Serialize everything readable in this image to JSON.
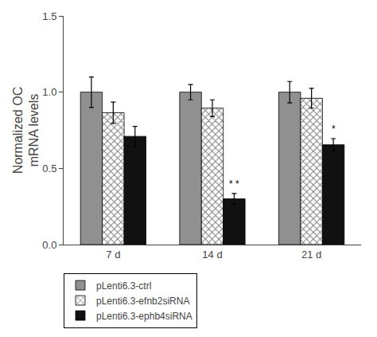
{
  "chart_data": {
    "type": "bar",
    "categories": [
      "7 d",
      "14 d",
      "21 d"
    ],
    "series": [
      {
        "name": "pLenti6.3-ctrl",
        "color": "#909090",
        "values": [
          1.0,
          1.0,
          1.0
        ],
        "errors": [
          0.1,
          0.05,
          0.07
        ]
      },
      {
        "name": "pLenti6.3-efnb2siRNA",
        "color": "#ffffff",
        "marker": "x",
        "values": [
          0.865,
          0.895,
          0.96
        ],
        "errors": [
          0.07,
          0.055,
          0.065
        ]
      },
      {
        "name": "pLenti6.3-ephb4siRNA",
        "color": "#111111",
        "values": [
          0.71,
          0.3,
          0.655
        ],
        "errors": [
          0.065,
          0.035,
          0.04
        ]
      }
    ],
    "ylabel": "Normalized OC\nmRNA levels",
    "ylim": [
      0.0,
      1.5
    ],
    "yticks": [
      {
        "value": 0.0,
        "label": "0.0"
      },
      0.5,
      {
        "value": 1.0,
        "label": "1.0"
      },
      1.5
    ],
    "grid": false,
    "legend": "bottom left",
    "annotations": [
      {
        "text": "* *",
        "category": "14 d",
        "series": "pLenti6.3-ephb4siRNA"
      },
      {
        "text": "*",
        "category": "21 d",
        "series": "pLenti6.3-ephb4siRNA"
      }
    ]
  }
}
